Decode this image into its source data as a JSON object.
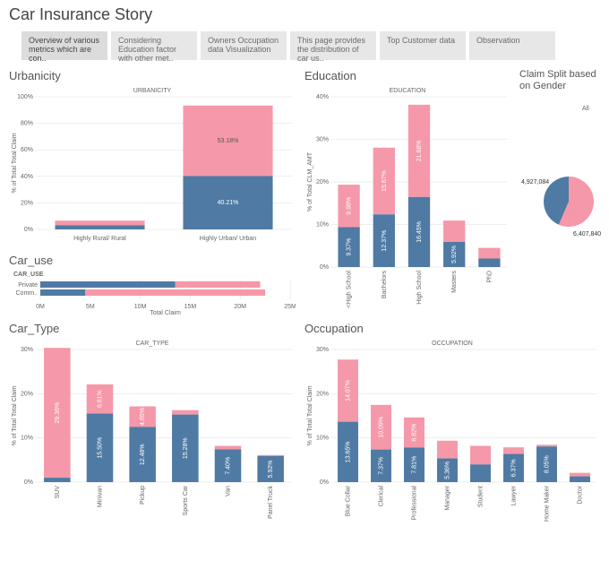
{
  "title": "Car Insurance Story",
  "tabs": [
    "Overview of various metrics which are con..",
    "Considering Education factor with other met..",
    "Owners Occupation data Visualization",
    "This page provides the distribution of car us..",
    "Top Customer data",
    "Observation"
  ],
  "colors": {
    "pink": "#f598a9",
    "blue": "#4f7aa3",
    "grid": "#dddddd",
    "text": "#666666"
  },
  "urbanicity": {
    "title": "Urbanicity",
    "subtitle": "URBANICITY",
    "ylabel": "% of Total Total Claim",
    "ylim": [
      0,
      100
    ],
    "ytick_step": 20,
    "categories": [
      "Highly Rural/ Rural",
      "Highly Urban/ Urban"
    ],
    "pink_vals": [
      3.5,
      53.18
    ],
    "blue_vals": [
      3.1,
      40.21
    ],
    "labels": [
      [
        "",
        ""
      ],
      [
        "53.18%",
        "40.21%"
      ]
    ]
  },
  "car_use": {
    "title": "Car_use",
    "legend": "CAR_USE",
    "xlabel": "Total Claim",
    "xlim": [
      0,
      25
    ],
    "ticks": [
      "0M",
      "5M",
      "10M",
      "15M",
      "20M",
      "25M"
    ],
    "rows": [
      {
        "name": "Private",
        "blue": 13.5,
        "pink": 22.0
      },
      {
        "name": "Comm..",
        "blue": 4.5,
        "pink": 22.5
      }
    ]
  },
  "education": {
    "title": "Education",
    "subtitle": "EDUCATION",
    "ylabel": "% of Total CLM_AMT",
    "ylim": [
      0,
      40
    ],
    "ytick_step": 10,
    "categories": [
      "<High School",
      "Bachelors",
      "High School",
      "Masters",
      "PhD"
    ],
    "pink_vals": [
      9.98,
      15.67,
      21.68,
      5.0,
      2.5
    ],
    "blue_vals": [
      9.37,
      12.37,
      16.45,
      5.92,
      2.0
    ],
    "pink_labels": [
      "9.98%",
      "15.67%",
      "21.68%",
      "",
      ""
    ],
    "blue_labels": [
      "9.37%",
      "12.37%",
      "16.45%",
      "5.92%",
      ""
    ]
  },
  "gender": {
    "title": "Claim Split based on Gender",
    "all_label": "All",
    "slices": [
      {
        "value": 6407840,
        "label": "6,407,840",
        "color": "#f598a9",
        "frac": 0.565
      },
      {
        "value": 4927084,
        "label": "4,927,084",
        "color": "#4f7aa3",
        "frac": 0.435
      }
    ]
  },
  "car_type": {
    "title": "Car_Type",
    "subtitle": "CAR_TYPE",
    "ylabel": "% of Total Total Claim",
    "ylim": [
      0,
      30
    ],
    "ytick_step": 10,
    "categories": [
      "SUV",
      "Minivan",
      "Pickup",
      "Sports Car",
      "Van",
      "Panel Truck"
    ],
    "pink_vals": [
      29.36,
      6.61,
      4.65,
      1.0,
      0.8,
      0.2
    ],
    "blue_vals": [
      1.0,
      15.5,
      12.48,
      15.28,
      7.4,
      5.92
    ],
    "pink_labels": [
      "29.36%",
      "6.61%",
      "4.65%",
      "",
      "",
      ""
    ],
    "blue_labels": [
      "",
      "15.50%",
      "12.48%",
      "15.28%",
      "7.40%",
      "5.92%"
    ]
  },
  "occupation": {
    "title": "Occupation",
    "subtitle": "OCCUPATION",
    "ylabel": "% of Total Total Claim",
    "ylim": [
      0,
      30
    ],
    "ytick_step": 10,
    "categories": [
      "Blue Collar",
      "Clerical",
      "Professional",
      "Manager",
      "Student",
      "Lawyer",
      "Home Maker",
      "Doctor"
    ],
    "pink_vals": [
      14.07,
      10.09,
      6.82,
      4.0,
      4.2,
      1.5,
      0.4,
      0.8
    ],
    "blue_vals": [
      13.65,
      7.37,
      7.81,
      5.36,
      4.0,
      6.37,
      8.05,
      1.3
    ],
    "pink_labels": [
      "14.07%",
      "10.09%",
      "6.82%",
      "",
      "",
      "",
      "",
      ""
    ],
    "blue_labels": [
      "13.65%",
      "7.37%",
      "7.81%",
      "5.36%",
      "",
      "6.37%",
      "8.05%",
      ""
    ]
  }
}
